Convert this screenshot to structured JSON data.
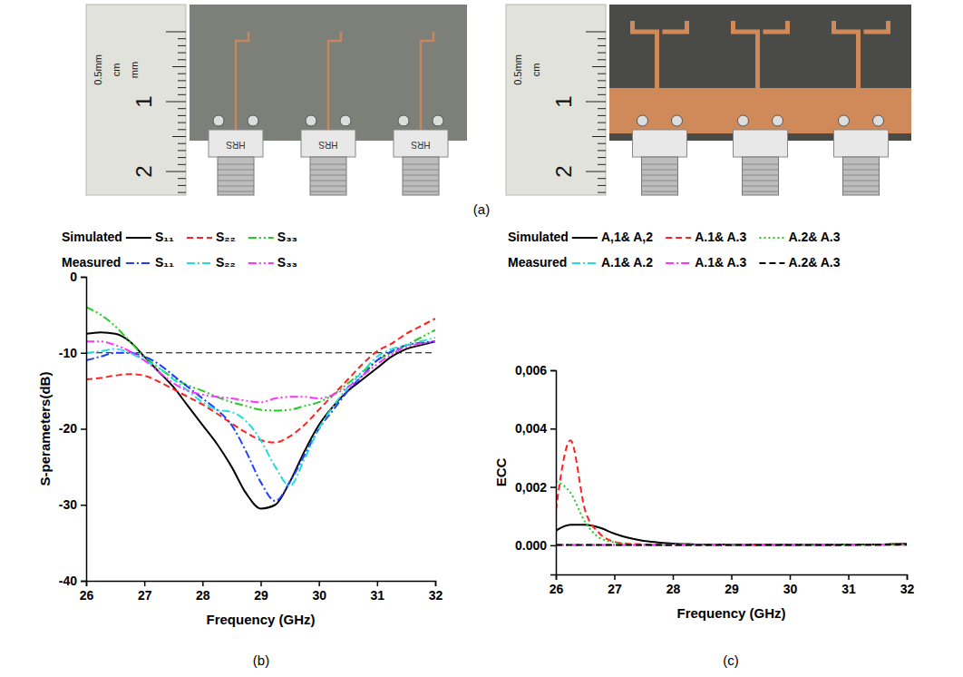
{
  "figure": {
    "panel_labels": [
      "(a)",
      "(b)",
      "(c)"
    ],
    "photos": [
      {
        "ruler": {
          "unit_labels": [
            "0.5mm",
            "cm",
            "mm"
          ],
          "cm_labels": [
            "1",
            "2"
          ]
        },
        "connector_labels": [
          "HRS",
          "HRS",
          "HRS"
        ]
      },
      {
        "ruler": {
          "unit_labels": [
            "0.5mm",
            "cm"
          ],
          "cm_labels": [
            "1",
            "2"
          ]
        }
      }
    ]
  },
  "chart_data": [
    {
      "type": "line",
      "x_label": "Frequency (GHz)",
      "y_label": "S-perameters(dB)",
      "x": [
        26,
        26.25,
        26.5,
        26.75,
        27,
        27.25,
        27.5,
        27.75,
        28,
        28.25,
        28.5,
        28.75,
        29,
        29.25,
        29.5,
        29.75,
        30,
        30.25,
        30.5,
        30.75,
        31,
        31.25,
        31.5,
        31.75,
        32
      ],
      "xlim": [
        26,
        32
      ],
      "xticks": [
        26,
        27,
        28,
        29,
        30,
        31,
        32
      ],
      "ylim": [
        -40,
        0
      ],
      "yticks": [
        -40,
        -30,
        -20,
        -10,
        0
      ],
      "grid": false,
      "legend": "top",
      "reference_line": {
        "value": -10,
        "color": "#000000",
        "line_style": "dashed"
      },
      "series": [
        {
          "name": "S₁₁",
          "group": "Simulated",
          "color": "#000000",
          "line_style": "solid",
          "values": [
            -7.5,
            -7.3,
            -7.5,
            -8.5,
            -10.5,
            -12.5,
            -14.5,
            -17,
            -19.5,
            -22,
            -25,
            -28.5,
            -30.5,
            -30,
            -27,
            -23,
            -19.5,
            -17,
            -15,
            -13.5,
            -12,
            -10.5,
            -9.5,
            -9,
            -8.5
          ]
        },
        {
          "name": "S₂₂",
          "group": "Simulated",
          "color": "#ff2020",
          "line_style": "dashed",
          "values": [
            -13.5,
            -13.3,
            -13,
            -12.8,
            -13,
            -13.8,
            -14.8,
            -15.8,
            -16.8,
            -18,
            -19.3,
            -20.5,
            -21.5,
            -21.8,
            -21,
            -19.5,
            -17.5,
            -15.5,
            -13.5,
            -11.5,
            -9.8,
            -8.8,
            -7.5,
            -6.5,
            -5.5
          ]
        },
        {
          "name": "S₃₃",
          "group": "Simulated",
          "color": "#22cc22",
          "line_style": "dash-dot-dot",
          "values": [
            -4,
            -5,
            -6.5,
            -8.5,
            -10.5,
            -12,
            -13.3,
            -14.3,
            -15,
            -15.8,
            -16.5,
            -17,
            -17.5,
            -17.6,
            -17.5,
            -17,
            -16.5,
            -15.5,
            -14,
            -12.5,
            -11,
            -10,
            -9,
            -8,
            -7
          ]
        },
        {
          "name": "S₁₁",
          "group": "Measured",
          "color": "#1f3fff",
          "line_style": "dash-dot",
          "values": [
            -11,
            -10.5,
            -10,
            -10,
            -10.5,
            -11.5,
            -13,
            -14.5,
            -16,
            -17.5,
            -19.5,
            -23,
            -27,
            -29.5,
            -27,
            -23.5,
            -20,
            -17.5,
            -15,
            -13,
            -11,
            -9.8,
            -9,
            -8.7,
            -8.5
          ]
        },
        {
          "name": "S₂₂",
          "group": "Measured",
          "color": "#22dddd",
          "line_style": "dash-dot",
          "values": [
            -10,
            -9.8,
            -9.5,
            -10,
            -11,
            -12,
            -13.5,
            -15,
            -16.5,
            -17.5,
            -17.8,
            -19,
            -21.5,
            -25,
            -27.5,
            -24,
            -20,
            -17,
            -14.5,
            -12.5,
            -10.5,
            -9.5,
            -9,
            -8.5,
            -8
          ]
        },
        {
          "name": "S₃₃",
          "group": "Measured",
          "color": "#ff33ff",
          "line_style": "dash-dot-dot",
          "values": [
            -8.5,
            -8.5,
            -9,
            -9.8,
            -11,
            -12.5,
            -14,
            -15,
            -15.5,
            -15.8,
            -16,
            -16.3,
            -16.5,
            -16,
            -15.8,
            -15.8,
            -16,
            -15.5,
            -14.5,
            -13,
            -11.5,
            -10.2,
            -9.2,
            -8.8,
            -8.5
          ]
        }
      ]
    },
    {
      "type": "line",
      "x_label": "Frequency (GHz)",
      "y_label": "ECC",
      "x": [
        26,
        26.25,
        26.5,
        26.75,
        27,
        27.25,
        27.5,
        27.75,
        28,
        28.25,
        28.5,
        28.75,
        29,
        29.25,
        29.5,
        29.75,
        30,
        30.25,
        30.5,
        30.75,
        31,
        31.25,
        31.5,
        31.75,
        32
      ],
      "xlim": [
        26,
        32
      ],
      "xticks": [
        26,
        27,
        28,
        29,
        30,
        31,
        32
      ],
      "ylim": [
        -0.001,
        0.006
      ],
      "yticks": [
        {
          "value": 0,
          "label": "0.000"
        },
        {
          "value": 0.002,
          "label": "0,002"
        },
        {
          "value": 0.004,
          "label": "0,004"
        },
        {
          "value": 0.006,
          "label": "0,006"
        }
      ],
      "grid": false,
      "legend": "top",
      "series": [
        {
          "name": "A,1& A,2",
          "group": "Simulated",
          "color": "#000000",
          "line_style": "solid",
          "values": [
            0.0005,
            0.0007,
            0.0007,
            0.0006,
            0.0004,
            0.00025,
            0.00015,
            0.0001,
            6e-05,
            4e-05,
            3e-05,
            3e-05,
            2e-05,
            2e-05,
            2e-05,
            2e-05,
            2e-05,
            2e-05,
            2e-05,
            2e-05,
            3e-05,
            3e-05,
            3e-05,
            4e-05,
            5e-05
          ]
        },
        {
          "name": "A.1& A.3",
          "group": "Simulated",
          "color": "#ff2020",
          "line_style": "dashed",
          "values": [
            0.0012,
            0.0036,
            0.0012,
            0.0004,
            0.00012,
            5e-05,
            3e-05,
            2e-05,
            1e-05,
            1e-05,
            1e-05,
            1e-05,
            1e-05,
            1e-05,
            1e-05,
            1e-05,
            1e-05,
            1e-05,
            1e-05,
            1e-05,
            1e-05,
            1e-05,
            1e-05,
            1e-05,
            1e-05
          ]
        },
        {
          "name": "A.2& A.3",
          "group": "Simulated",
          "color": "#22cc22",
          "line_style": "dotted",
          "values": [
            0.0022,
            0.0018,
            0.0008,
            0.00025,
            0.0001,
            4e-05,
            2e-05,
            1e-05,
            1e-05,
            1e-05,
            1e-05,
            1e-05,
            1e-05,
            1e-05,
            1e-05,
            1e-05,
            1e-05,
            1e-05,
            1e-05,
            1e-05,
            1e-05,
            1e-05,
            1e-05,
            1e-05,
            1e-05
          ]
        },
        {
          "name": "A.1& A.2",
          "group": "Measured",
          "color": "#22dddd",
          "line_style": "dash-dot",
          "values": [
            1e-05,
            1e-05,
            1e-05,
            1e-05,
            1e-05,
            1e-05,
            1e-05,
            1e-05,
            1e-05,
            1e-05,
            1e-05,
            1e-05,
            1e-05,
            1e-05,
            1e-05,
            1e-05,
            1e-05,
            1e-05,
            1e-05,
            1e-05,
            1e-05,
            2e-05,
            2e-05,
            3e-05,
            3e-05
          ]
        },
        {
          "name": "A.1& A.3",
          "group": "Measured",
          "color": "#ff33ff",
          "line_style": "dash-dot",
          "values": [
            1e-05,
            1e-05,
            1e-05,
            1e-05,
            1e-05,
            1e-05,
            1e-05,
            1e-05,
            1e-05,
            1e-05,
            1e-05,
            1e-05,
            1e-05,
            1e-05,
            1e-05,
            1e-05,
            1e-05,
            1e-05,
            1e-05,
            1e-05,
            1e-05,
            2e-05,
            2e-05,
            3e-05,
            3e-05
          ]
        },
        {
          "name": "A.2& A.3",
          "group": "Measured",
          "color": "#000000",
          "line_style": "dashed",
          "values": [
            1e-05,
            1e-05,
            1e-05,
            1e-05,
            1e-05,
            1e-05,
            1e-05,
            1e-05,
            1e-05,
            1e-05,
            1e-05,
            1e-05,
            1e-05,
            1e-05,
            1e-05,
            1e-05,
            1e-05,
            1e-05,
            1e-05,
            1e-05,
            1e-05,
            2e-05,
            2e-05,
            3e-05,
            3e-05
          ]
        }
      ]
    }
  ]
}
